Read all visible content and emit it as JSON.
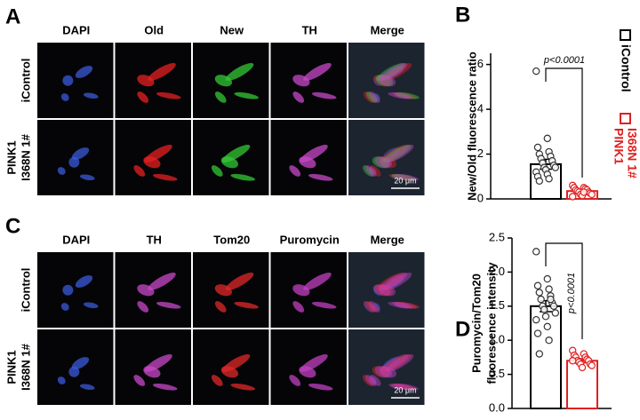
{
  "panel_a": {
    "letter": "A",
    "columns": [
      "DAPI",
      "Old",
      "New",
      "TH",
      "Merge"
    ],
    "rows": [
      [
        "iControl"
      ],
      [
        "PINK1",
        "I368N 1#"
      ]
    ],
    "scale_bar": "20 μm"
  },
  "panel_c": {
    "letter": "C",
    "columns": [
      "DAPI",
      "TH",
      "Tom20",
      "Puromycin",
      "Merge"
    ],
    "rows": [
      [
        "iControl"
      ],
      [
        "PINK1",
        "I368N 1#"
      ]
    ],
    "scale_bar": "20 μm"
  },
  "chart_data": [
    {
      "type": "bar",
      "letter": "B",
      "ylabel": [
        "New/Old fluorescence ratio"
      ],
      "annotation": "p<0.0001",
      "ylim": [
        0,
        6.5
      ],
      "yticks": [
        0,
        2,
        4,
        6
      ],
      "legend": true,
      "series": [
        {
          "name": [
            "iControl"
          ],
          "color": "#000000",
          "values": [
            1.55
          ],
          "errors": [
            0.22
          ],
          "points": [
            5.7,
            2.7,
            2.3,
            2.1,
            2.0,
            1.9,
            1.8,
            1.7,
            1.6,
            1.5,
            1.4,
            1.4,
            1.3,
            1.2,
            1.1,
            1.0,
            0.9,
            0.8
          ]
        },
        {
          "name": [
            "PINK1",
            "I368N 1#"
          ],
          "color": "#e02020",
          "values": [
            0.35
          ],
          "errors": [
            0.05
          ],
          "points": [
            0.6,
            0.5,
            0.5,
            0.45,
            0.4,
            0.4,
            0.35,
            0.3,
            0.3,
            0.25,
            0.2,
            0.2,
            0.15,
            0.1,
            0.3
          ]
        }
      ]
    },
    {
      "type": "bar",
      "letter": "D",
      "ylabel": [
        "Puromycin/Tom20",
        "fluorescence intensity"
      ],
      "annotation": "p<0.0001",
      "ylim": [
        0,
        2.5
      ],
      "yticks": [
        {
          "value": 0,
          "label": "0.0"
        },
        0.5,
        {
          "value": 1,
          "label": "1.0"
        },
        1.5,
        {
          "value": 2,
          "label": "2.0"
        },
        2.5
      ],
      "legend": false,
      "series": [
        {
          "color": "#000000",
          "values": [
            1.5
          ],
          "errors": [
            0.08
          ],
          "points": [
            2.3,
            1.9,
            1.8,
            1.75,
            1.7,
            1.65,
            1.6,
            1.55,
            1.5,
            1.5,
            1.45,
            1.4,
            1.35,
            1.3,
            1.2,
            1.1,
            1.0,
            0.8,
            1.6
          ]
        },
        {
          "color": "#e02020",
          "values": [
            0.7
          ],
          "errors": [
            0.03
          ],
          "points": [
            0.85,
            0.8,
            0.78,
            0.75,
            0.75,
            0.72,
            0.7,
            0.7,
            0.68,
            0.65,
            0.65,
            0.63,
            0.6,
            0.7
          ]
        }
      ]
    }
  ]
}
